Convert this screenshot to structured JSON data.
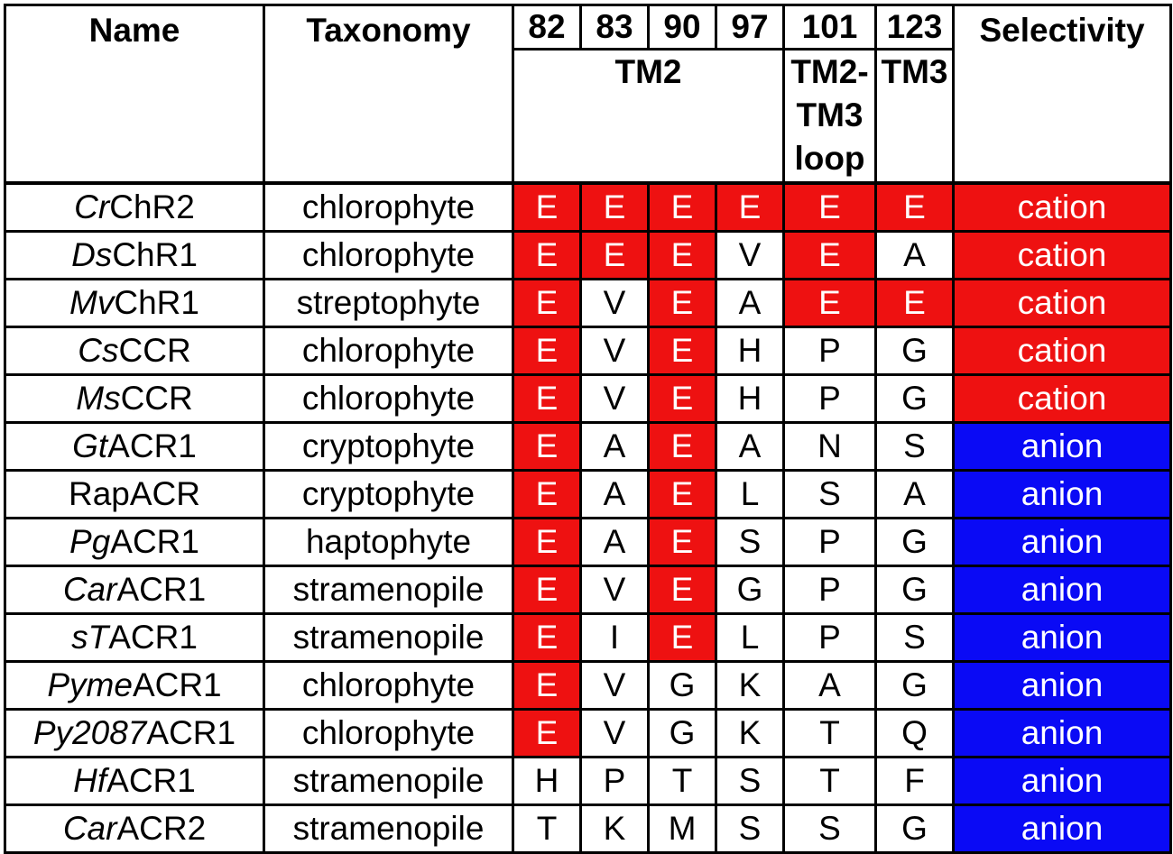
{
  "header": {
    "name": "Name",
    "taxonomy": "Taxonomy",
    "positions": [
      "82",
      "83",
      "90",
      "97",
      "101",
      "123"
    ],
    "regions": [
      "TM2",
      "TM2-\nTM3\nloop",
      "TM3"
    ],
    "selectivity": "Selectivity"
  },
  "rows": [
    {
      "name_italic": "Cr",
      "name_rest": "ChR2",
      "taxonomy": "chlorophyte",
      "residues": [
        "E",
        "E",
        "E",
        "E",
        "E",
        "E"
      ],
      "highlight": [
        true,
        true,
        true,
        true,
        true,
        true
      ],
      "selectivity": "cation"
    },
    {
      "name_italic": "Ds",
      "name_rest": "ChR1",
      "taxonomy": "chlorophyte",
      "residues": [
        "E",
        "E",
        "E",
        "V",
        "E",
        "A"
      ],
      "highlight": [
        true,
        true,
        true,
        false,
        true,
        false
      ],
      "selectivity": "cation"
    },
    {
      "name_italic": "Mv",
      "name_rest": "ChR1",
      "taxonomy": "streptophyte",
      "residues": [
        "E",
        "V",
        "E",
        "A",
        "E",
        "E"
      ],
      "highlight": [
        true,
        false,
        true,
        false,
        true,
        true
      ],
      "selectivity": "cation"
    },
    {
      "name_italic": "Cs",
      "name_rest": "CCR",
      "taxonomy": "chlorophyte",
      "residues": [
        "E",
        "V",
        "E",
        "H",
        "P",
        "G"
      ],
      "highlight": [
        true,
        false,
        true,
        false,
        false,
        false
      ],
      "selectivity": "cation"
    },
    {
      "name_italic": "Ms",
      "name_rest": "CCR",
      "taxonomy": "chlorophyte",
      "residues": [
        "E",
        "V",
        "E",
        "H",
        "P",
        "G"
      ],
      "highlight": [
        true,
        false,
        true,
        false,
        false,
        false
      ],
      "selectivity": "cation"
    },
    {
      "name_italic": "Gt",
      "name_rest": "ACR1",
      "taxonomy": "cryptophyte",
      "residues": [
        "E",
        "A",
        "E",
        "A",
        "N",
        "S"
      ],
      "highlight": [
        true,
        false,
        true,
        false,
        false,
        false
      ],
      "selectivity": "anion"
    },
    {
      "name_italic": "",
      "name_rest": "RapACR",
      "taxonomy": "cryptophyte",
      "residues": [
        "E",
        "A",
        "E",
        "L",
        "S",
        "A"
      ],
      "highlight": [
        true,
        false,
        true,
        false,
        false,
        false
      ],
      "selectivity": "anion"
    },
    {
      "name_italic": "Pg",
      "name_rest": "ACR1",
      "taxonomy": "haptophyte",
      "residues": [
        "E",
        "A",
        "E",
        "S",
        "P",
        "G"
      ],
      "highlight": [
        true,
        false,
        true,
        false,
        false,
        false
      ],
      "selectivity": "anion"
    },
    {
      "name_italic": "Car",
      "name_rest": "ACR1",
      "taxonomy": "stramenopile",
      "residues": [
        "E",
        "V",
        "E",
        "G",
        "P",
        "G"
      ],
      "highlight": [
        true,
        false,
        true,
        false,
        false,
        false
      ],
      "selectivity": "anion"
    },
    {
      "name_italic": "sT",
      "name_rest": "ACR1",
      "taxonomy": "stramenopile",
      "residues": [
        "E",
        "I",
        "E",
        "L",
        "P",
        "S"
      ],
      "highlight": [
        true,
        false,
        true,
        false,
        false,
        false
      ],
      "selectivity": "anion"
    },
    {
      "name_italic": "Pyme",
      "name_rest": "ACR1",
      "taxonomy": "chlorophyte",
      "residues": [
        "E",
        "V",
        "G",
        "K",
        "A",
        "G"
      ],
      "highlight": [
        true,
        false,
        false,
        false,
        false,
        false
      ],
      "selectivity": "anion"
    },
    {
      "name_italic": "Py2087",
      "name_rest": "ACR1",
      "taxonomy": "chlorophyte",
      "residues": [
        "E",
        "V",
        "G",
        "K",
        "T",
        "Q"
      ],
      "highlight": [
        true,
        false,
        false,
        false,
        false,
        false
      ],
      "selectivity": "anion"
    },
    {
      "name_italic": "Hf",
      "name_rest": "ACR1",
      "taxonomy": "stramenopile",
      "residues": [
        "H",
        "P",
        "T",
        "S",
        "T",
        "F"
      ],
      "highlight": [
        false,
        false,
        false,
        false,
        false,
        false
      ],
      "selectivity": "anion"
    },
    {
      "name_italic": "Car",
      "name_rest": "ACR2",
      "taxonomy": "stramenopile",
      "residues": [
        "T",
        "K",
        "M",
        "S",
        "S",
        "G"
      ],
      "highlight": [
        false,
        false,
        false,
        false,
        false,
        false
      ],
      "selectivity": "anion"
    }
  ],
  "colors": {
    "residue_highlight": "#ee1111",
    "cation": "#ee1111",
    "anion": "#0a0af5",
    "text_on_color": "#ffffff"
  }
}
